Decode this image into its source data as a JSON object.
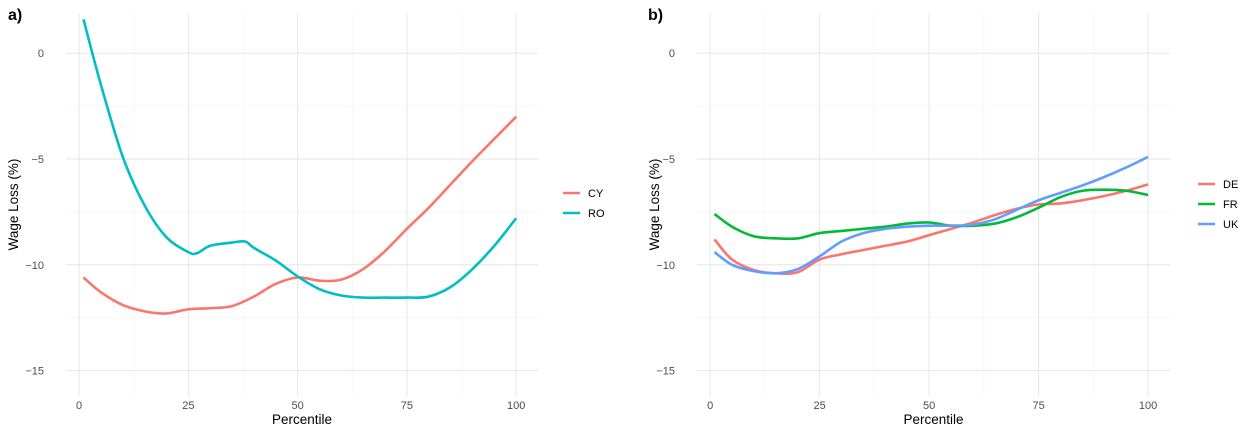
{
  "chart_data": [
    {
      "type": "line",
      "panel_label": "a)",
      "xlabel": "Percentile",
      "ylabel": "Wage Loss (%)",
      "xlim": [
        -3,
        105
      ],
      "ylim": [
        -16.2,
        1.9
      ],
      "xticks": [
        0,
        25,
        50,
        75,
        100
      ],
      "yticks": [
        0,
        -5,
        -10,
        -15
      ],
      "grid": true,
      "legend": "right",
      "series": [
        {
          "name": "CY",
          "color": "#F8766D",
          "x": [
            1,
            5,
            10,
            15,
            20,
            25,
            30,
            35,
            40,
            45,
            50,
            55,
            60,
            65,
            70,
            75,
            80,
            85,
            90,
            95,
            100
          ],
          "y": [
            -10.6,
            -11.3,
            -11.9,
            -12.2,
            -12.3,
            -12.1,
            -12.05,
            -11.95,
            -11.5,
            -10.9,
            -10.6,
            -10.75,
            -10.7,
            -10.2,
            -9.35,
            -8.3,
            -7.3,
            -6.2,
            -5.1,
            -4.05,
            -3.0
          ]
        },
        {
          "name": "RO",
          "color": "#00BFC4",
          "x": [
            1,
            5,
            10,
            15,
            20,
            25,
            27,
            30,
            35,
            38,
            40,
            45,
            50,
            55,
            60,
            65,
            70,
            75,
            80,
            85,
            90,
            95,
            100
          ],
          "y": [
            1.6,
            -1.5,
            -4.9,
            -7.2,
            -8.7,
            -9.4,
            -9.45,
            -9.1,
            -8.95,
            -8.9,
            -9.2,
            -9.8,
            -10.55,
            -11.15,
            -11.45,
            -11.55,
            -11.55,
            -11.55,
            -11.5,
            -11.05,
            -10.2,
            -9.1,
            -7.8
          ]
        }
      ]
    },
    {
      "type": "line",
      "panel_label": "b)",
      "xlabel": "Percentile",
      "ylabel": "Wage Loss (%)",
      "xlim": [
        -3,
        105
      ],
      "ylim": [
        -16.2,
        1.9
      ],
      "xticks": [
        0,
        25,
        50,
        75,
        100
      ],
      "yticks": [
        0,
        -5,
        -10,
        -15
      ],
      "grid": true,
      "legend": "right",
      "series": [
        {
          "name": "DE",
          "color": "#F8766D",
          "x": [
            1,
            5,
            10,
            15,
            20,
            25,
            30,
            35,
            40,
            45,
            50,
            55,
            60,
            65,
            70,
            75,
            80,
            85,
            90,
            95,
            100
          ],
          "y": [
            -8.8,
            -9.75,
            -10.25,
            -10.4,
            -10.35,
            -9.75,
            -9.5,
            -9.3,
            -9.1,
            -8.9,
            -8.6,
            -8.3,
            -8.0,
            -7.65,
            -7.35,
            -7.15,
            -7.1,
            -6.95,
            -6.75,
            -6.5,
            -6.2
          ]
        },
        {
          "name": "FR",
          "color": "#00BA38",
          "x": [
            1,
            5,
            10,
            15,
            20,
            25,
            30,
            35,
            40,
            45,
            50,
            55,
            60,
            65,
            70,
            75,
            80,
            85,
            90,
            95,
            100
          ],
          "y": [
            -7.6,
            -8.2,
            -8.65,
            -8.75,
            -8.75,
            -8.5,
            -8.4,
            -8.3,
            -8.2,
            -8.05,
            -8.0,
            -8.15,
            -8.15,
            -8.05,
            -7.75,
            -7.3,
            -6.8,
            -6.5,
            -6.45,
            -6.5,
            -6.7
          ]
        },
        {
          "name": "UK",
          "color": "#619CFF",
          "x": [
            1,
            5,
            10,
            15,
            20,
            25,
            30,
            35,
            40,
            45,
            50,
            55,
            60,
            65,
            70,
            75,
            80,
            85,
            90,
            95,
            100
          ],
          "y": [
            -9.4,
            -10.0,
            -10.3,
            -10.4,
            -10.2,
            -9.6,
            -8.9,
            -8.5,
            -8.3,
            -8.2,
            -8.15,
            -8.15,
            -8.1,
            -7.85,
            -7.4,
            -6.95,
            -6.6,
            -6.25,
            -5.85,
            -5.4,
            -4.9
          ]
        }
      ]
    }
  ]
}
